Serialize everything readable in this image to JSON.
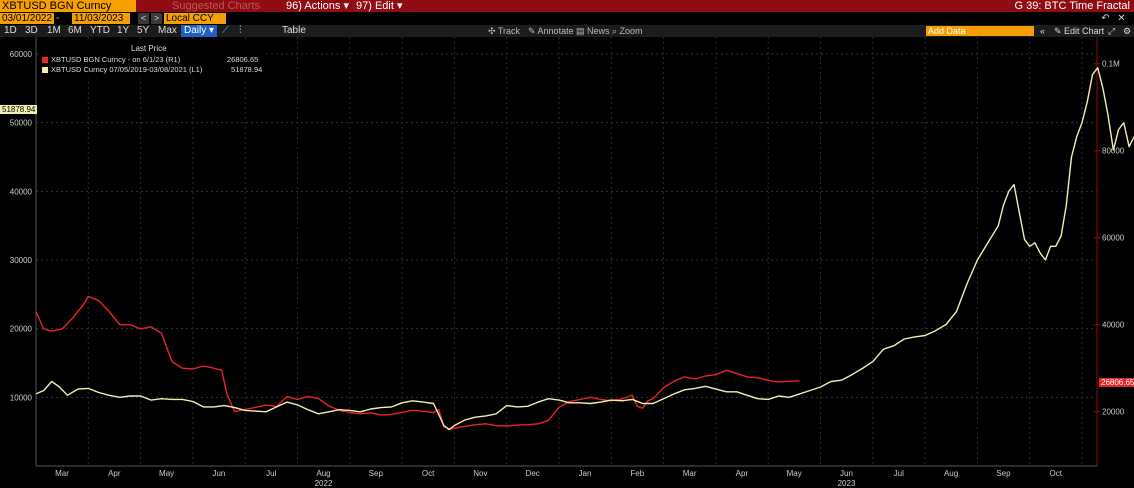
{
  "header": {
    "ticker": "XBTUSD BGN Curncy",
    "suggested": "Suggested Charts",
    "actions": "96) Actions ▾",
    "edit": "97) Edit ▾",
    "graph_title": "G 39: BTC Time Fractal"
  },
  "controls": {
    "start_date": "03/01/2022",
    "end_date": "11/03/2023",
    "currency": "Local CCY",
    "periods": [
      "1D",
      "3D",
      "1M",
      "6M",
      "YTD",
      "1Y",
      "5Y",
      "Max"
    ],
    "frequency": "Daily ▾",
    "table_label": "Table",
    "tools": [
      "Track",
      "Annotate",
      "News",
      "Zoom"
    ],
    "add_data_placeholder": "Add Data",
    "edit_chart": "Edit Chart"
  },
  "legend": {
    "header": "Last Price",
    "items": [
      {
        "label": "XBTUSD BGN Curncy - on 6/1/23 (R1)",
        "value": "26806.65",
        "color": "#e8232a"
      },
      {
        "label": "XBTUSD Curncy 07/05/2019-03/08/2021  (L1)",
        "value": "51878.94",
        "color": "#f3eeb0"
      }
    ]
  },
  "chart_data": {
    "type": "line",
    "left_axis": {
      "ticks": [
        "10000",
        "20000",
        "30000",
        "40000",
        "50000",
        "60000"
      ],
      "ylim": [
        0,
        60000
      ],
      "last_tag": "51878.94"
    },
    "right_axis": {
      "ticks": [
        "20000",
        "40000",
        "60000",
        "80000",
        "0.1M"
      ],
      "ylim": [
        7500,
        105000
      ],
      "last_tag": "26806.65"
    },
    "month_labels": [
      "Mar",
      "Apr",
      "May",
      "Jun",
      "Jul",
      "Aug",
      "Sep",
      "Oct",
      "Nov",
      "Dec",
      "Jan",
      "Feb",
      "Mar",
      "Apr",
      "May",
      "Jun",
      "Jul",
      "Aug",
      "Sep",
      "Oct"
    ],
    "year_labels": [
      {
        "label": "2022",
        "month_index": 5
      },
      {
        "label": "2023",
        "month_index": 15
      }
    ],
    "series": [
      {
        "name": "XBTUSD BGN Curncy - on 6/1/23 (R1)",
        "axis": "right",
        "color": "#e8232a",
        "points": [
          [
            0,
            43000
          ],
          [
            0.15,
            39000
          ],
          [
            0.3,
            38500
          ],
          [
            0.5,
            39000
          ],
          [
            0.7,
            41500
          ],
          [
            0.9,
            44500
          ],
          [
            1.0,
            46500
          ],
          [
            1.2,
            45500
          ],
          [
            1.4,
            43000
          ],
          [
            1.6,
            40000
          ],
          [
            1.8,
            40000
          ],
          [
            2.0,
            39000
          ],
          [
            2.2,
            39500
          ],
          [
            2.4,
            38000
          ],
          [
            2.6,
            31500
          ],
          [
            2.8,
            30000
          ],
          [
            3.0,
            29800
          ],
          [
            3.2,
            30500
          ],
          [
            3.4,
            30000
          ],
          [
            3.55,
            29500
          ],
          [
            3.65,
            24000
          ],
          [
            3.8,
            20000
          ],
          [
            4.0,
            20500
          ],
          [
            4.2,
            21000
          ],
          [
            4.4,
            21500
          ],
          [
            4.6,
            21200
          ],
          [
            4.8,
            23500
          ],
          [
            5.0,
            22800
          ],
          [
            5.2,
            23500
          ],
          [
            5.4,
            23000
          ],
          [
            5.6,
            21300
          ],
          [
            5.8,
            20300
          ],
          [
            6.0,
            19800
          ],
          [
            6.2,
            19500
          ],
          [
            6.4,
            19700
          ],
          [
            6.6,
            19200
          ],
          [
            6.8,
            19400
          ],
          [
            7.0,
            19800
          ],
          [
            7.2,
            20300
          ],
          [
            7.4,
            20100
          ],
          [
            7.6,
            19800
          ],
          [
            7.7,
            20500
          ],
          [
            7.8,
            16500
          ],
          [
            7.9,
            16000
          ],
          [
            8.0,
            16200
          ],
          [
            8.2,
            16600
          ],
          [
            8.4,
            17000
          ],
          [
            8.6,
            17200
          ],
          [
            8.8,
            16800
          ],
          [
            9.0,
            16700
          ],
          [
            9.2,
            16900
          ],
          [
            9.4,
            17000
          ],
          [
            9.6,
            17200
          ],
          [
            9.8,
            18000
          ],
          [
            10.0,
            21000
          ],
          [
            10.2,
            22300
          ],
          [
            10.4,
            22800
          ],
          [
            10.6,
            23300
          ],
          [
            10.8,
            22800
          ],
          [
            11.0,
            22500
          ],
          [
            11.2,
            22900
          ],
          [
            11.4,
            23800
          ],
          [
            11.5,
            21200
          ],
          [
            11.6,
            20800
          ],
          [
            11.7,
            22500
          ],
          [
            11.8,
            23000
          ],
          [
            12.0,
            25500
          ],
          [
            12.2,
            27000
          ],
          [
            12.4,
            28000
          ],
          [
            12.6,
            27500
          ],
          [
            12.8,
            28200
          ],
          [
            13.0,
            28500
          ],
          [
            13.2,
            29500
          ],
          [
            13.4,
            28800
          ],
          [
            13.6,
            28000
          ],
          [
            13.8,
            27800
          ],
          [
            14.0,
            27200
          ],
          [
            14.2,
            26800
          ],
          [
            14.4,
            27000
          ],
          [
            14.6,
            27100
          ]
        ]
      },
      {
        "name": "XBTUSD Curncy 07/05/2019-03/08/2021  (L1)",
        "axis": "left",
        "color": "#f3eeb0",
        "points": [
          [
            0,
            10500
          ],
          [
            0.15,
            11000
          ],
          [
            0.3,
            12300
          ],
          [
            0.45,
            11500
          ],
          [
            0.6,
            10300
          ],
          [
            0.8,
            11200
          ],
          [
            1.0,
            11300
          ],
          [
            1.2,
            10700
          ],
          [
            1.4,
            10300
          ],
          [
            1.6,
            10000
          ],
          [
            1.8,
            10200
          ],
          [
            2.0,
            10200
          ],
          [
            2.2,
            9600
          ],
          [
            2.4,
            9800
          ],
          [
            2.6,
            9700
          ],
          [
            2.8,
            9700
          ],
          [
            3.0,
            9400
          ],
          [
            3.2,
            8600
          ],
          [
            3.4,
            8600
          ],
          [
            3.6,
            8800
          ],
          [
            3.8,
            8500
          ],
          [
            4.0,
            8100
          ],
          [
            4.2,
            8000
          ],
          [
            4.4,
            7900
          ],
          [
            4.6,
            8600
          ],
          [
            4.8,
            9300
          ],
          [
            5.0,
            8900
          ],
          [
            5.2,
            8200
          ],
          [
            5.4,
            7600
          ],
          [
            5.6,
            7900
          ],
          [
            5.8,
            8200
          ],
          [
            6.0,
            8100
          ],
          [
            6.2,
            7900
          ],
          [
            6.4,
            8300
          ],
          [
            6.6,
            8500
          ],
          [
            6.8,
            8600
          ],
          [
            7.0,
            9200
          ],
          [
            7.2,
            9500
          ],
          [
            7.4,
            9300
          ],
          [
            7.6,
            9100
          ],
          [
            7.8,
            5900
          ],
          [
            7.9,
            5300
          ],
          [
            8.0,
            5900
          ],
          [
            8.2,
            6700
          ],
          [
            8.4,
            7100
          ],
          [
            8.6,
            7300
          ],
          [
            8.8,
            7600
          ],
          [
            9.0,
            8800
          ],
          [
            9.2,
            8600
          ],
          [
            9.4,
            8700
          ],
          [
            9.6,
            9300
          ],
          [
            9.8,
            9800
          ],
          [
            10.0,
            9600
          ],
          [
            10.2,
            9200
          ],
          [
            10.4,
            9200
          ],
          [
            10.6,
            9100
          ],
          [
            10.8,
            9300
          ],
          [
            11.0,
            9600
          ],
          [
            11.2,
            9500
          ],
          [
            11.4,
            9700
          ],
          [
            11.6,
            9100
          ],
          [
            11.8,
            9100
          ],
          [
            12.0,
            9800
          ],
          [
            12.2,
            10500
          ],
          [
            12.4,
            11100
          ],
          [
            12.6,
            11300
          ],
          [
            12.8,
            11600
          ],
          [
            13.0,
            11200
          ],
          [
            13.2,
            10800
          ],
          [
            13.4,
            10800
          ],
          [
            13.6,
            10300
          ],
          [
            13.8,
            9800
          ],
          [
            14.0,
            9700
          ],
          [
            14.2,
            10200
          ],
          [
            14.4,
            10000
          ],
          [
            14.6,
            10500
          ],
          [
            14.8,
            11000
          ],
          [
            15.0,
            11500
          ],
          [
            15.2,
            12300
          ],
          [
            15.4,
            12500
          ],
          [
            15.6,
            13300
          ],
          [
            15.8,
            14200
          ],
          [
            16.0,
            15200
          ],
          [
            16.2,
            17000
          ],
          [
            16.4,
            17500
          ],
          [
            16.6,
            18500
          ],
          [
            16.8,
            18800
          ],
          [
            17.0,
            19000
          ],
          [
            17.2,
            19700
          ],
          [
            17.4,
            20600
          ],
          [
            17.6,
            22500
          ],
          [
            17.8,
            26500
          ],
          [
            18.0,
            30000
          ],
          [
            18.2,
            32500
          ],
          [
            18.4,
            35000
          ],
          [
            18.5,
            38000
          ],
          [
            18.6,
            40000
          ],
          [
            18.7,
            41000
          ],
          [
            18.8,
            37000
          ],
          [
            18.9,
            33000
          ],
          [
            19.0,
            32000
          ],
          [
            19.1,
            32500
          ],
          [
            19.2,
            31000
          ],
          [
            19.3,
            30000
          ],
          [
            19.4,
            32000
          ],
          [
            19.5,
            32000
          ],
          [
            19.6,
            33500
          ],
          [
            19.7,
            38000
          ],
          [
            19.8,
            45000
          ],
          [
            19.9,
            48000
          ],
          [
            20.0,
            50000
          ],
          [
            20.1,
            53000
          ],
          [
            20.2,
            57000
          ],
          [
            20.3,
            58000
          ],
          [
            20.4,
            55000
          ],
          [
            20.5,
            51000
          ],
          [
            20.6,
            46000
          ],
          [
            20.7,
            49000
          ],
          [
            20.8,
            50000
          ],
          [
            20.9,
            46500
          ],
          [
            21.0,
            48000
          ],
          [
            21.1,
            49000
          ],
          [
            21.2,
            51000
          ],
          [
            21.3,
            51900
          ]
        ]
      }
    ]
  }
}
